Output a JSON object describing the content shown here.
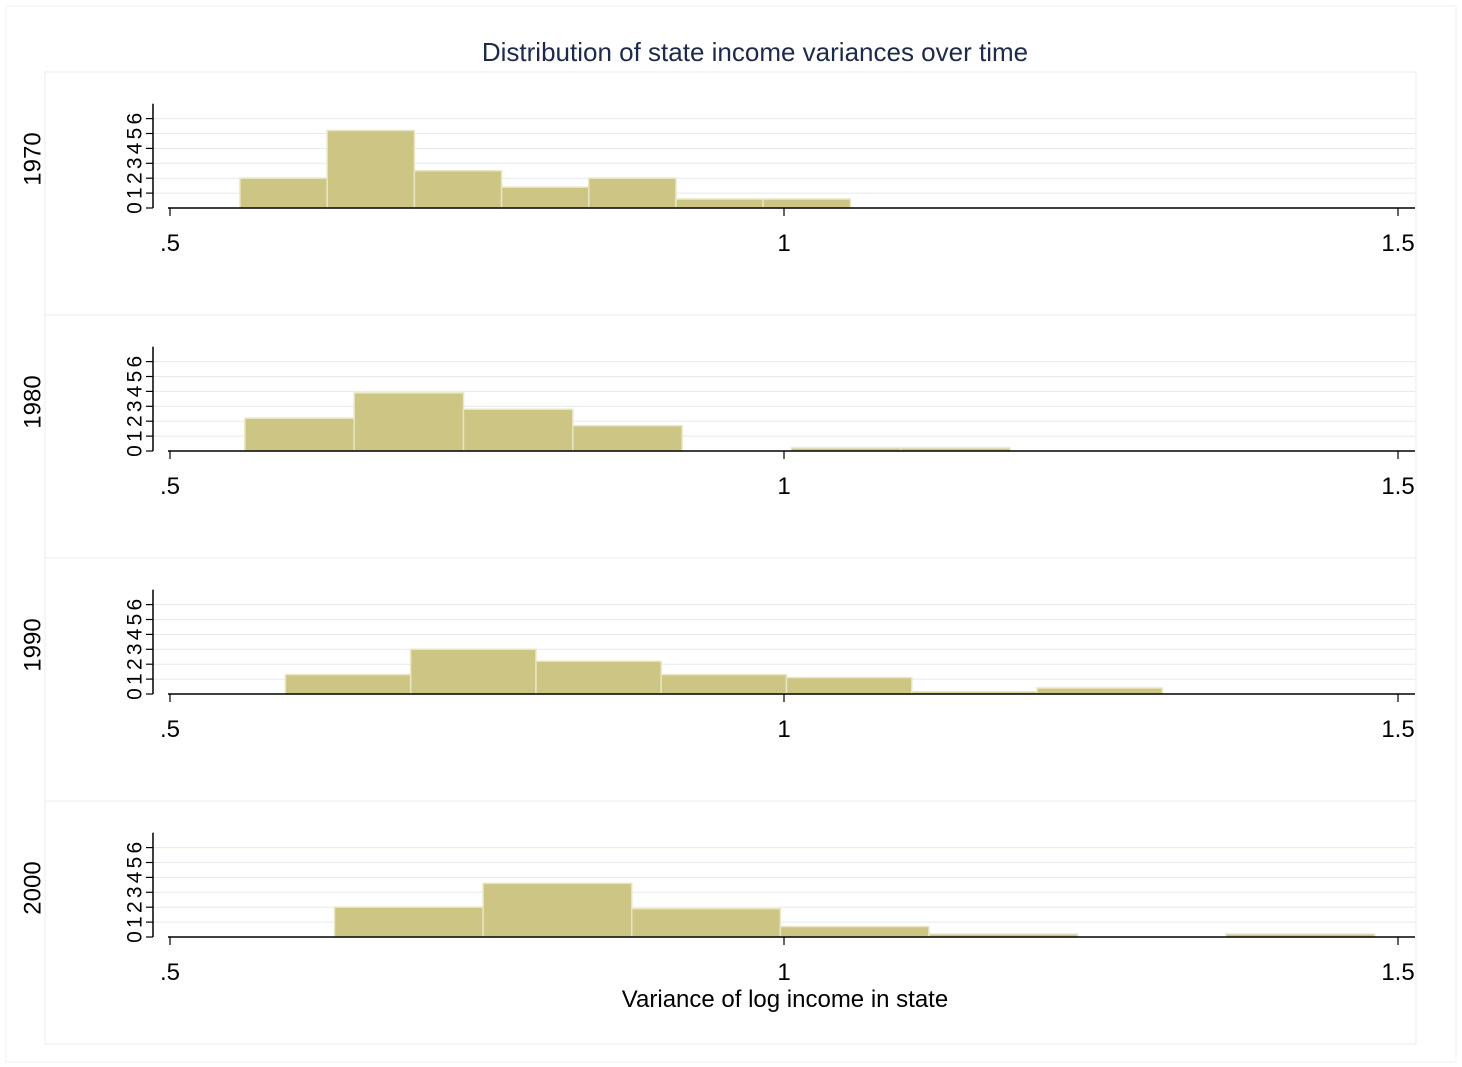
{
  "title": "Distribution of state income variances over time",
  "xlabel": "Variance of log income in state",
  "colors": {
    "bar_fill": "#cdc584",
    "bar_edge": "#e9e5c3",
    "title": "#1e2a4a",
    "grid": "#e4eaef",
    "panel_border": "#e6ecf0",
    "axis": "#000000"
  },
  "chart_data": {
    "type": "bar",
    "title": "Distribution of state income variances over time",
    "xlabel": "Variance of log income in state",
    "xlim": [
      0.5,
      1.5
    ],
    "x_ticks": [
      {
        "value": 0.5,
        "label": ".5"
      },
      {
        "value": 1.0,
        "label": "1"
      },
      {
        "value": 1.5,
        "label": "1.5"
      }
    ],
    "ylim": [
      0,
      7
    ],
    "y_ticks": [
      0,
      1,
      2,
      3,
      4,
      5,
      6
    ],
    "y_tick_labels": [
      "0",
      "1",
      "2",
      "3",
      "4",
      "5",
      "6"
    ],
    "grid": true,
    "panels": [
      {
        "name": "1970",
        "bin_width": 0.071,
        "bins": [
          {
            "x0": 0.557,
            "x1": 0.628,
            "count": 2
          },
          {
            "x0": 0.628,
            "x1": 0.699,
            "count": 5.2
          },
          {
            "x0": 0.699,
            "x1": 0.77,
            "count": 2.5
          },
          {
            "x0": 0.77,
            "x1": 0.841,
            "count": 1.4
          },
          {
            "x0": 0.841,
            "x1": 0.912,
            "count": 2
          },
          {
            "x0": 0.912,
            "x1": 0.983,
            "count": 0.6
          },
          {
            "x0": 0.983,
            "x1": 1.054,
            "count": 0.6
          }
        ]
      },
      {
        "name": "1980",
        "bin_width": 0.089,
        "bins": [
          {
            "x0": 0.561,
            "x1": 0.65,
            "count": 2.2
          },
          {
            "x0": 0.65,
            "x1": 0.739,
            "count": 3.9
          },
          {
            "x0": 0.739,
            "x1": 0.828,
            "count": 2.8
          },
          {
            "x0": 0.828,
            "x1": 0.917,
            "count": 1.7
          },
          {
            "x0": 0.917,
            "x1": 1.006,
            "count": 0
          },
          {
            "x0": 1.006,
            "x1": 1.095,
            "count": 0.2
          },
          {
            "x0": 1.095,
            "x1": 1.184,
            "count": 0.2
          }
        ]
      },
      {
        "name": "1990",
        "bin_width": 0.102,
        "bins": [
          {
            "x0": 0.594,
            "x1": 0.696,
            "count": 1.3
          },
          {
            "x0": 0.696,
            "x1": 0.798,
            "count": 3
          },
          {
            "x0": 0.798,
            "x1": 0.9,
            "count": 2.2
          },
          {
            "x0": 0.9,
            "x1": 1.002,
            "count": 1.3
          },
          {
            "x0": 1.002,
            "x1": 1.104,
            "count": 1.1
          },
          {
            "x0": 1.104,
            "x1": 1.206,
            "count": 0.15
          },
          {
            "x0": 1.206,
            "x1": 1.308,
            "count": 0.4
          }
        ]
      },
      {
        "name": "2000",
        "bin_width": 0.121,
        "bins": [
          {
            "x0": 0.634,
            "x1": 0.755,
            "count": 2
          },
          {
            "x0": 0.755,
            "x1": 0.876,
            "count": 3.6
          },
          {
            "x0": 0.876,
            "x1": 0.997,
            "count": 1.9
          },
          {
            "x0": 0.997,
            "x1": 1.118,
            "count": 0.7
          },
          {
            "x0": 1.118,
            "x1": 1.239,
            "count": 0.2
          },
          {
            "x0": 1.239,
            "x1": 1.36,
            "count": 0
          },
          {
            "x0": 1.36,
            "x1": 1.481,
            "count": 0.2
          }
        ]
      }
    ]
  }
}
